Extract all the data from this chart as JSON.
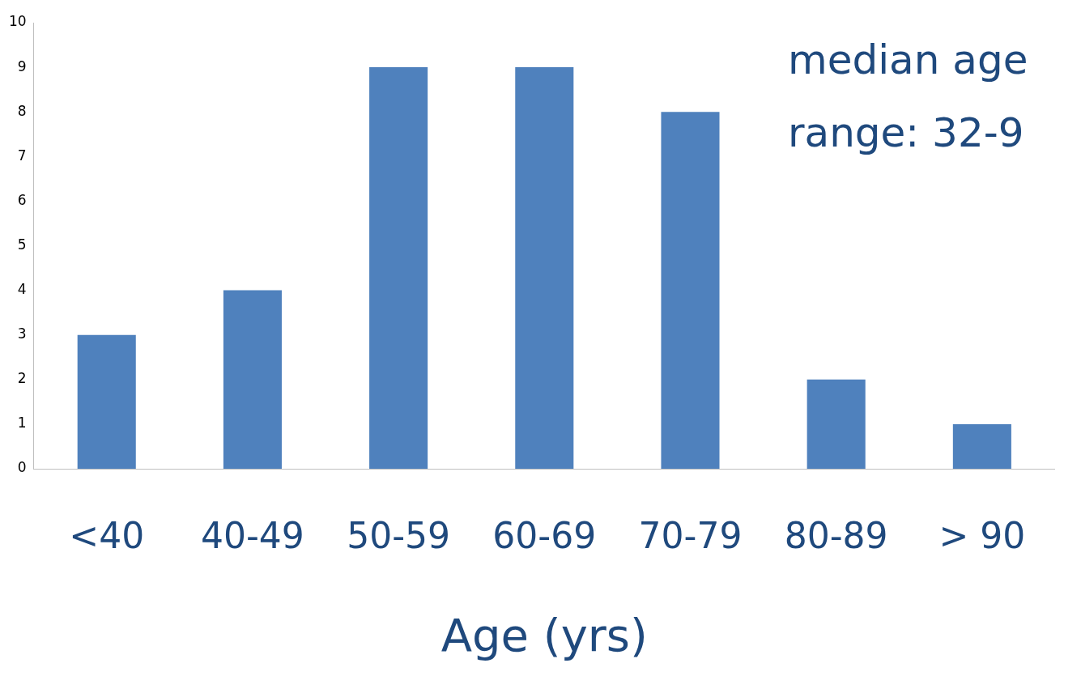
{
  "chart_data": {
    "type": "bar",
    "xlabel": "Age (yrs)",
    "categories": [
      "<40",
      "40-49",
      "50-59",
      "60-69",
      "70-79",
      "80-89",
      "> 90"
    ],
    "values": [
      3,
      4,
      9,
      9,
      8,
      2,
      1
    ],
    "color": "#4f81bd",
    "ylim": [
      0,
      10
    ],
    "yticks": [
      0,
      1,
      2,
      3,
      4,
      5,
      6,
      7,
      8,
      9,
      10
    ],
    "grid": false,
    "legend": false,
    "annotations": [
      "median age",
      "range: 32-9"
    ]
  }
}
